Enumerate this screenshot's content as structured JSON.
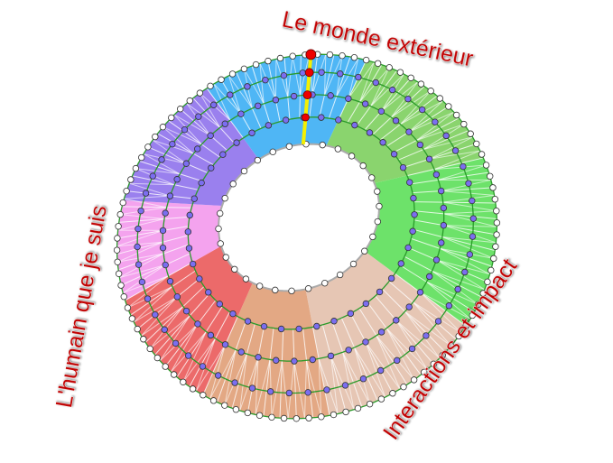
{
  "labels": {
    "top": "Le monde extérieur",
    "left": "L'humain que je suis",
    "right": "Interactions et impact"
  }
}
